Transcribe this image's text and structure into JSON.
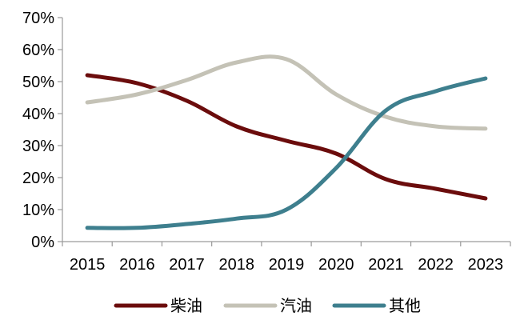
{
  "chart_data": {
    "type": "line",
    "title": "",
    "xlabel": "",
    "ylabel": "",
    "categories": [
      "2015",
      "2016",
      "2017",
      "2018",
      "2019",
      "2020",
      "2021",
      "2022",
      "2023"
    ],
    "ylim": [
      0,
      70
    ],
    "yticks": [
      0,
      10,
      20,
      30,
      40,
      50,
      60,
      70
    ],
    "ytick_labels": [
      "0%",
      "10%",
      "20%",
      "30%",
      "40%",
      "50%",
      "60%",
      "70%"
    ],
    "grid": false,
    "legend_position": "bottom",
    "series": [
      {
        "name": "柴油",
        "color": "#6b0c0c",
        "values": [
          52,
          49.5,
          44,
          36,
          31.5,
          27.5,
          19.5,
          16.5,
          13.5
        ]
      },
      {
        "name": "汽油",
        "color": "#c4c2b6",
        "values": [
          43.5,
          46,
          50.5,
          56,
          57,
          46,
          39,
          36,
          35.3
        ]
      },
      {
        "name": "其他",
        "color": "#3e7f8e",
        "values": [
          4.3,
          4.3,
          5.5,
          7.2,
          10,
          23,
          41,
          47,
          51
        ]
      }
    ]
  }
}
